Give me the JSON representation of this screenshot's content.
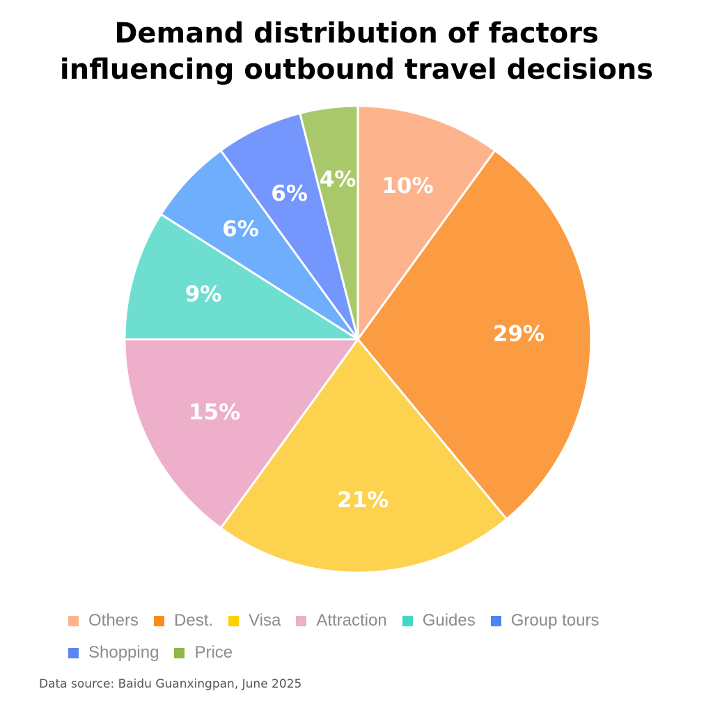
{
  "chart_data": {
    "type": "pie",
    "title_lines": [
      "Demand distribution of factors",
      "influencing outbound travel decisions"
    ],
    "slices": [
      {
        "name": "Others",
        "value": 10,
        "label": "10%",
        "color": "#FDB48C"
      },
      {
        "name": "Dest.",
        "value": 29,
        "label": "29%",
        "color": "#FB9C43"
      },
      {
        "name": "Visa",
        "value": 21,
        "label": "21%",
        "color": "#FDD24F"
      },
      {
        "name": "Attraction",
        "value": 15,
        "label": "15%",
        "color": "#EDAFC9"
      },
      {
        "name": "Guides",
        "value": 9,
        "label": "9%",
        "color": "#6DDECF"
      },
      {
        "name": "Group tours",
        "value": 6,
        "label": "6%",
        "color": "#6EAEFC"
      },
      {
        "name": "Shopping",
        "value": 6,
        "label": "6%",
        "color": "#7496FD"
      },
      {
        "name": "Price",
        "value": 4,
        "label": "4%",
        "color": "#A9C86A"
      }
    ],
    "legend_rows": [
      [
        {
          "name": "Others",
          "color": "#FDB48C"
        },
        {
          "name": "Dest.",
          "color": "#FB8C1D"
        },
        {
          "name": "Visa",
          "color": "#FDD000"
        },
        {
          "name": "Attraction",
          "color": "#EDAFC9"
        },
        {
          "name": "Guides",
          "color": "#43D8C4"
        },
        {
          "name": "Group tours",
          "color": "#4A86F5"
        }
      ],
      [
        {
          "name": "Shopping",
          "color": "#5C86F5"
        },
        {
          "name": "Price",
          "color": "#8DB848"
        }
      ]
    ],
    "legend_position": "bottom",
    "source": "Data source: Baidu Guanxingpan, June 2025"
  }
}
